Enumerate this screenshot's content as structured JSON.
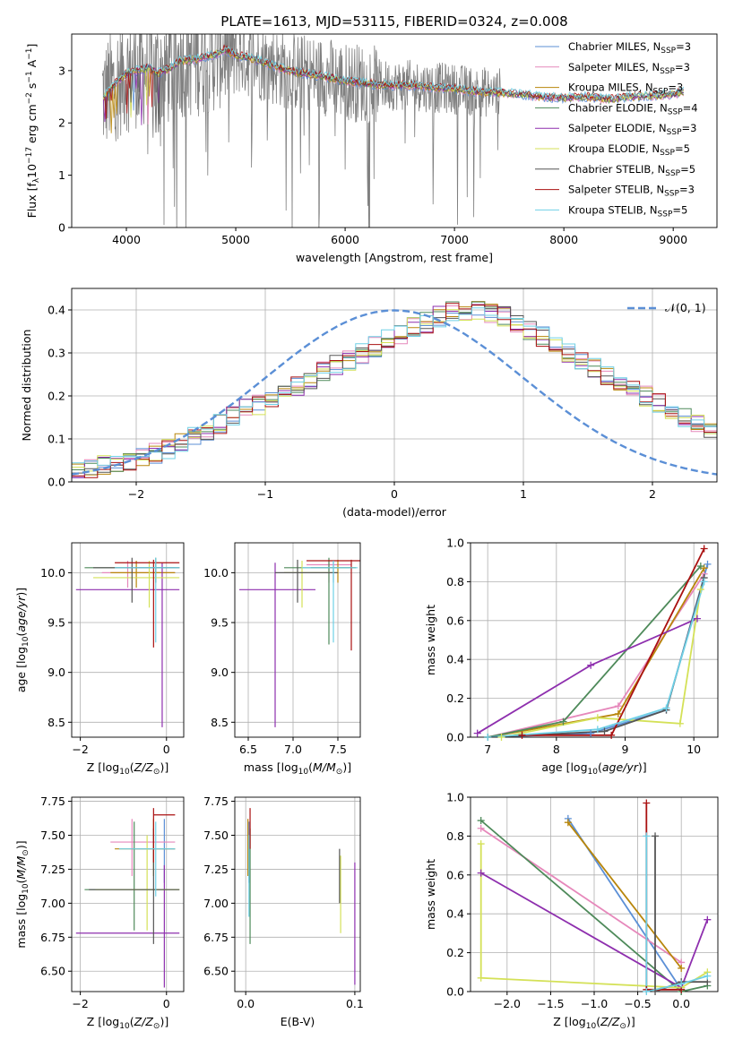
{
  "title": "PLATE=1613, MJD=53115, FIBERID=0324, z=0.008",
  "colors": [
    "#5b8fd6",
    "#e688bb",
    "#b8860b",
    "#4e8a5a",
    "#8e2fae",
    "#d4e157",
    "#555555",
    "#aa1111",
    "#6fd0e6"
  ],
  "chart_data": [
    {
      "panel": "spectrum",
      "type": "line",
      "xlabel": "wavelength [Angstrom, rest frame]",
      "ylabel": "Flux [f_λ 10^-17 erg cm^-2 s^-1 A^-1]",
      "xlim": [
        3500,
        9400
      ],
      "ylim": [
        0,
        3.7
      ],
      "xticks": [
        4000,
        5000,
        6000,
        7000,
        8000,
        9000
      ],
      "yticks": [
        0,
        1,
        2,
        3
      ],
      "grid": false,
      "legend_position": "top-right",
      "legend": [
        {
          "label": "Chabrier MILES, N",
          "n": 3
        },
        {
          "label": "Salpeter MILES, N",
          "n": 3
        },
        {
          "label": "Kroupa MILES, N",
          "n": 3
        },
        {
          "label": "Chabrier ELODIE, N",
          "n": 4
        },
        {
          "label": "Salpeter ELODIE, N",
          "n": 3
        },
        {
          "label": "Kroupa ELODIE, N",
          "n": 5
        },
        {
          "label": "Chabrier STELIB, N",
          "n": 5
        },
        {
          "label": "Salpeter STELIB, N",
          "n": 3
        },
        {
          "label": "Kroupa STELIB, N",
          "n": 5
        }
      ],
      "model_continuum": {
        "x": [
          3790,
          3900,
          4000,
          4100,
          4200,
          4300,
          4400,
          4500,
          4600,
          4700,
          4800,
          4900,
          5000,
          5200,
          5400,
          5600,
          5800,
          6000,
          6200,
          6400,
          6600,
          6800,
          7000,
          7200,
          7400,
          7600,
          7800,
          8000,
          8200,
          8400,
          8600,
          8800,
          9000,
          9100
        ],
        "y": [
          2.5,
          2.75,
          2.95,
          3.0,
          3.05,
          2.95,
          3.05,
          3.2,
          3.2,
          3.25,
          3.3,
          3.4,
          3.3,
          3.2,
          3.05,
          2.95,
          2.9,
          2.8,
          2.75,
          2.72,
          2.72,
          2.68,
          2.65,
          2.6,
          2.58,
          2.55,
          2.5,
          2.48,
          2.5,
          2.45,
          2.5,
          2.52,
          2.55,
          2.6
        ]
      },
      "data_range_x": [
        3780,
        7420
      ]
    },
    {
      "panel": "residual-histogram",
      "type": "bar",
      "xlabel": "(data-model)/error",
      "ylabel": "Normed distribution",
      "xlim": [
        -2.5,
        2.5
      ],
      "ylim": [
        0,
        0.45
      ],
      "xticks": [
        -2,
        -1,
        0,
        1,
        2
      ],
      "yticks": [
        0.0,
        0.1,
        0.2,
        0.3,
        0.4
      ],
      "grid": true,
      "legend_position": "top-right",
      "reference_label": "𝒩(0, 1)",
      "bin_edges_start": -2.5,
      "bin_width": 0.1,
      "histogram_mean": [
        0.025,
        0.032,
        0.04,
        0.045,
        0.05,
        0.058,
        0.065,
        0.078,
        0.09,
        0.105,
        0.118,
        0.135,
        0.15,
        0.168,
        0.18,
        0.198,
        0.21,
        0.225,
        0.24,
        0.255,
        0.27,
        0.285,
        0.3,
        0.315,
        0.33,
        0.345,
        0.36,
        0.37,
        0.385,
        0.395,
        0.4,
        0.4,
        0.395,
        0.385,
        0.37,
        0.355,
        0.34,
        0.32,
        0.3,
        0.28,
        0.265,
        0.25,
        0.235,
        0.215,
        0.2,
        0.185,
        0.165,
        0.15,
        0.135,
        0.12
      ]
    },
    {
      "panel": "age-vs-Z",
      "type": "scatter",
      "xlabel": "Z [log10(Z/Z⊙)]",
      "ylabel": "age [log10(age/yr)]",
      "xlim": [
        -2.2,
        0.4
      ],
      "ylim": [
        8.35,
        10.3
      ],
      "xticks": [
        -2,
        0
      ],
      "yticks": [
        8.5,
        9.0,
        9.5,
        10.0
      ],
      "grid": true
    },
    {
      "panel": "age-vs-mass",
      "type": "scatter",
      "xlabel": "mass [log10(M/M⊙)]",
      "xlim": [
        6.35,
        7.75
      ],
      "ylim": [
        8.35,
        10.3
      ],
      "xticks": [
        6.5,
        7.0,
        7.5
      ],
      "yticks": [
        8.5,
        9.0,
        9.5,
        10.0
      ],
      "grid": true
    },
    {
      "panel": "mass-weight-vs-age",
      "type": "line",
      "xlabel": "age [log10(age/yr)]",
      "ylabel": "mass weight",
      "xlim": [
        6.75,
        10.35
      ],
      "ylim": [
        0,
        1.0
      ],
      "xticks": [
        7,
        8,
        9,
        10
      ],
      "yticks": [
        0.0,
        0.2,
        0.4,
        0.6,
        0.8,
        1.0
      ],
      "grid": true,
      "series": [
        {
          "x": [
            7.0,
            8.5,
            9.6,
            10.2
          ],
          "y": [
            0.0,
            0.02,
            0.14,
            0.89
          ]
        },
        {
          "x": [
            7.0,
            8.9,
            10.15
          ],
          "y": [
            0.0,
            0.16,
            0.84
          ]
        },
        {
          "x": [
            7.0,
            8.9,
            10.15
          ],
          "y": [
            0.0,
            0.12,
            0.87
          ]
        },
        {
          "x": [
            7.0,
            8.1,
            10.1
          ],
          "y": [
            0.0,
            0.08,
            0.88
          ]
        },
        {
          "x": [
            6.85,
            8.5,
            10.05
          ],
          "y": [
            0.02,
            0.37,
            0.61
          ]
        },
        {
          "x": [
            7.2,
            8.6,
            9.8,
            10.1
          ],
          "y": [
            0.0,
            0.1,
            0.07,
            0.76
          ]
        },
        {
          "x": [
            7.0,
            8.7,
            9.6,
            10.15
          ],
          "y": [
            0.0,
            0.03,
            0.14,
            0.82
          ]
        },
        {
          "x": [
            7.5,
            8.8,
            10.15
          ],
          "y": [
            0.01,
            0.01,
            0.97
          ]
        },
        {
          "x": [
            7.0,
            8.6,
            9.6,
            10.15
          ],
          "y": [
            0.0,
            0.04,
            0.15,
            0.8
          ]
        }
      ]
    },
    {
      "panel": "mass-vs-Z",
      "type": "scatter",
      "xlabel": "Z [log10(Z/Z⊙)]",
      "ylabel": "mass [log10(M/M⊙)]",
      "xlim": [
        -2.2,
        0.4
      ],
      "ylim": [
        6.35,
        7.78
      ],
      "xticks": [
        -2,
        0
      ],
      "yticks": [
        6.5,
        6.75,
        7.0,
        7.25,
        7.5,
        7.75
      ],
      "grid": true
    },
    {
      "panel": "mass-vs-EBV",
      "type": "scatter",
      "xlabel": "E(B-V)",
      "xlim": [
        -0.01,
        0.105
      ],
      "ylim": [
        6.35,
        7.78
      ],
      "xticks": [
        0.0,
        0.1
      ],
      "yticks": [
        6.5,
        6.75,
        7.0,
        7.25,
        7.5,
        7.75
      ],
      "grid": true
    },
    {
      "panel": "mass-weight-vs-Z",
      "type": "line",
      "xlabel": "Z [log10(Z/Z⊙)]",
      "ylabel": "mass weight",
      "xlim": [
        -2.42,
        0.42
      ],
      "ylim": [
        0,
        1.0
      ],
      "xticks": [
        -2.0,
        -1.5,
        -1.0,
        -0.5,
        0.0
      ],
      "yticks": [
        0.0,
        0.2,
        0.4,
        0.6,
        0.8,
        1.0
      ],
      "grid": true,
      "series": [
        {
          "x": [
            -1.3,
            0.0
          ],
          "y": [
            0.89,
            0.01
          ]
        },
        {
          "x": [
            -2.3,
            0.0
          ],
          "y": [
            0.84,
            0.15
          ]
        },
        {
          "x": [
            -1.3,
            0.0
          ],
          "y": [
            0.87,
            0.12
          ]
        },
        {
          "x": [
            -2.3,
            0.0,
            0.3
          ],
          "y": [
            0.88,
            0.0,
            0.03
          ]
        },
        {
          "x": [
            -2.3,
            0.0,
            0.3
          ],
          "y": [
            0.61,
            0.02,
            0.37
          ]
        },
        {
          "x": [
            -2.3,
            -2.3,
            0.0,
            0.3
          ],
          "y": [
            0.76,
            0.07,
            0.02,
            0.1
          ]
        },
        {
          "x": [
            -0.3,
            -0.3,
            0.0,
            0.3
          ],
          "y": [
            0.8,
            0.0,
            0.05,
            0.05
          ]
        },
        {
          "x": [
            -0.4,
            -0.4,
            0.0
          ],
          "y": [
            0.97,
            0.01,
            0.01
          ]
        },
        {
          "x": [
            -0.4,
            -0.4,
            0.0,
            0.3
          ],
          "y": [
            0.8,
            0.0,
            0.04,
            0.08
          ]
        }
      ]
    }
  ]
}
